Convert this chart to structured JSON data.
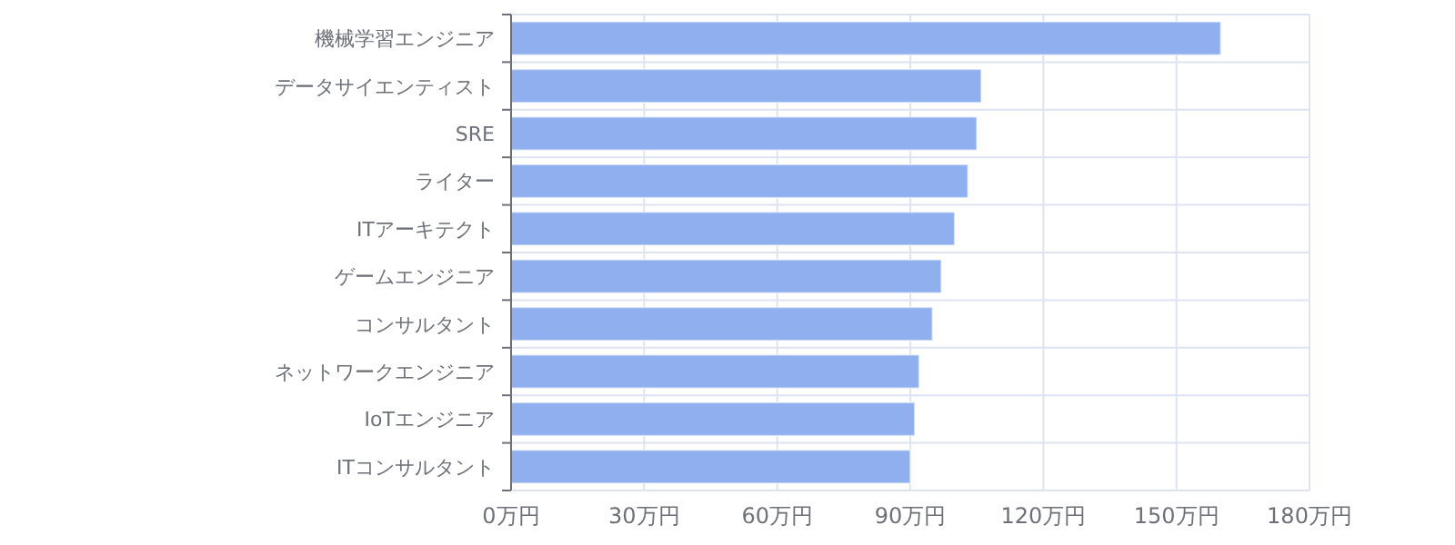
{
  "chart_data": {
    "type": "bar",
    "orientation": "horizontal",
    "categories": [
      "機械学習エンジニア",
      "データサイエンティスト",
      "SRE",
      "ライター",
      "ITアーキテクト",
      "ゲームエンジニア",
      "コンサルタント",
      "ネットワークエンジニア",
      "IoTエンジニア",
      "ITコンサルタント"
    ],
    "values": [
      160,
      106,
      105,
      103,
      100,
      97,
      95,
      92,
      91,
      90
    ],
    "color": "#8fafee",
    "xlim": [
      0,
      180
    ],
    "xticks": [
      {
        "value": 0,
        "label": "0万円"
      },
      {
        "value": 30,
        "label": "30万円"
      },
      {
        "value": 60,
        "label": "60万円"
      },
      {
        "value": 90,
        "label": "90万円"
      },
      {
        "value": 120,
        "label": "120万円"
      },
      {
        "value": 150,
        "label": "150万円"
      },
      {
        "value": 180,
        "label": "180万円"
      }
    ],
    "grid": true
  }
}
